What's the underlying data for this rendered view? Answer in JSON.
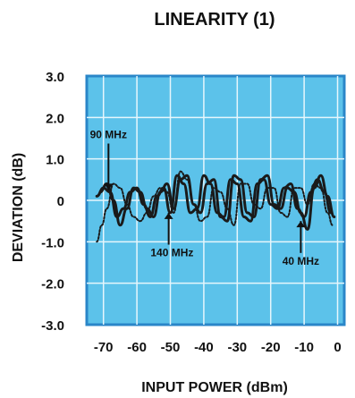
{
  "chart_data": {
    "type": "line",
    "title": "LINEARITY (1)",
    "xlabel": "INPUT POWER (dBm)",
    "ylabel": "DEVIATION (dB)",
    "xlim": [
      -75,
      2
    ],
    "ylim": [
      -3.0,
      3.0
    ],
    "x_ticks": [
      {
        "value": -70,
        "label": "-70"
      },
      {
        "value": -60,
        "label": "-60"
      },
      {
        "value": -50,
        "label": "-50"
      },
      {
        "value": -40,
        "label": "-40"
      },
      {
        "value": -30,
        "label": "-30"
      },
      {
        "value": -20,
        "label": "-20"
      },
      {
        "value": -10,
        "label": "-10"
      },
      {
        "value": 0,
        "label": "0"
      }
    ],
    "y_ticks": [
      {
        "value": 3.0,
        "label": "3.0"
      },
      {
        "value": 2.0,
        "label": "2.0"
      },
      {
        "value": 1.0,
        "label": "1.0"
      },
      {
        "value": 0,
        "label": "0"
      },
      {
        "value": -1.0,
        "label": "-1.0"
      },
      {
        "value": -2.0,
        "label": "-2.0"
      },
      {
        "value": -3.0,
        "label": "-3.0"
      }
    ],
    "grid": true,
    "series": [
      {
        "name": "90 MHz",
        "style": "dashed",
        "color": "#1a1a1a",
        "x": [
          -72,
          -70.5,
          -69,
          -67,
          -65,
          -63,
          -61,
          -59,
          -57,
          -55,
          -53,
          -51,
          -49,
          -47,
          -45,
          -43,
          -41,
          -39,
          -37,
          -35,
          -33,
          -31,
          -29,
          -27,
          -25,
          -23,
          -21,
          -19,
          -17,
          -15,
          -13,
          -11,
          -9,
          -7,
          -5,
          -3,
          -1.5
        ],
        "y": [
          -1.0,
          -0.6,
          -0.2,
          0.4,
          0.3,
          -0.1,
          -0.4,
          -0.5,
          -0.3,
          0.1,
          0.3,
          0.2,
          -0.3,
          0.7,
          0.5,
          -0.1,
          -0.5,
          -0.4,
          0.3,
          0.2,
          -0.2,
          -0.6,
          0.4,
          0.4,
          -0.1,
          -0.2,
          0.3,
          0.3,
          -0.3,
          -0.4,
          0.3,
          0.3,
          -0.1,
          0.4,
          0.3,
          -0.3,
          -0.6
        ]
      },
      {
        "name": "140 MHz",
        "style": "solid",
        "color": "#1a1a1a",
        "x": [
          -72,
          -70,
          -68,
          -66,
          -64,
          -62,
          -60,
          -58,
          -56,
          -54,
          -52,
          -50,
          -48,
          -46,
          -44,
          -42,
          -40,
          -38,
          -36,
          -34,
          -32,
          -30,
          -28,
          -26,
          -24,
          -22,
          -20,
          -18,
          -16,
          -14,
          -12,
          -10,
          -8,
          -6,
          -4,
          -2
        ],
        "y": [
          0.1,
          0.3,
          0.2,
          -0.4,
          -0.2,
          0.2,
          0.3,
          -0.1,
          -0.4,
          0.1,
          0.3,
          -0.3,
          0.6,
          0.4,
          -0.3,
          -0.2,
          0.6,
          0.4,
          -0.3,
          -0.4,
          0.5,
          0.4,
          -0.4,
          -0.5,
          0.4,
          0.5,
          -0.1,
          -0.2,
          0.3,
          0.4,
          -0.2,
          -0.4,
          0.2,
          0.5,
          0.2,
          -0.3
        ]
      },
      {
        "name": "40 MHz",
        "style": "solid",
        "color": "#1a1a1a",
        "x": [
          -71,
          -69,
          -67,
          -65,
          -63,
          -61,
          -59,
          -57,
          -55,
          -53,
          -51,
          -49,
          -47,
          -45,
          -43,
          -41,
          -39,
          -37,
          -35,
          -33,
          -31,
          -29,
          -27,
          -25,
          -23,
          -21,
          -19,
          -17,
          -15,
          -13,
          -11,
          -9,
          -7,
          -5,
          -3,
          -1
        ],
        "y": [
          0.2,
          0.4,
          0.0,
          -0.6,
          -0.2,
          0.3,
          0.2,
          -0.2,
          -0.4,
          0.2,
          0.4,
          -0.2,
          0.5,
          0.6,
          -0.1,
          -0.3,
          0.4,
          0.5,
          -0.4,
          -0.5,
          0.6,
          0.5,
          -0.3,
          -0.4,
          0.5,
          0.6,
          -0.1,
          -0.2,
          0.3,
          0.2,
          -0.3,
          -0.7,
          0.3,
          0.6,
          0.1,
          -0.4
        ]
      }
    ],
    "annotations": [
      {
        "text": "90 MHz",
        "label_x": -68.5,
        "label_y": 1.5,
        "arrow_to_x": -68.5,
        "arrow_to_y": 0.25,
        "arrow_dir": "down"
      },
      {
        "text": "140 MHz",
        "label_x": -49.5,
        "label_y": -1.35,
        "arrow_to_x": -50.5,
        "arrow_to_y": -0.3,
        "arrow_dir": "up"
      },
      {
        "text": "40 MHz",
        "label_x": -11,
        "label_y": -1.55,
        "arrow_to_x": -11,
        "arrow_to_y": -0.5,
        "arrow_dir": "up"
      }
    ],
    "colors": {
      "plot_background": "#5cc2ea",
      "plot_border": "#2a86c8",
      "grid": "#e6f6fc"
    }
  }
}
